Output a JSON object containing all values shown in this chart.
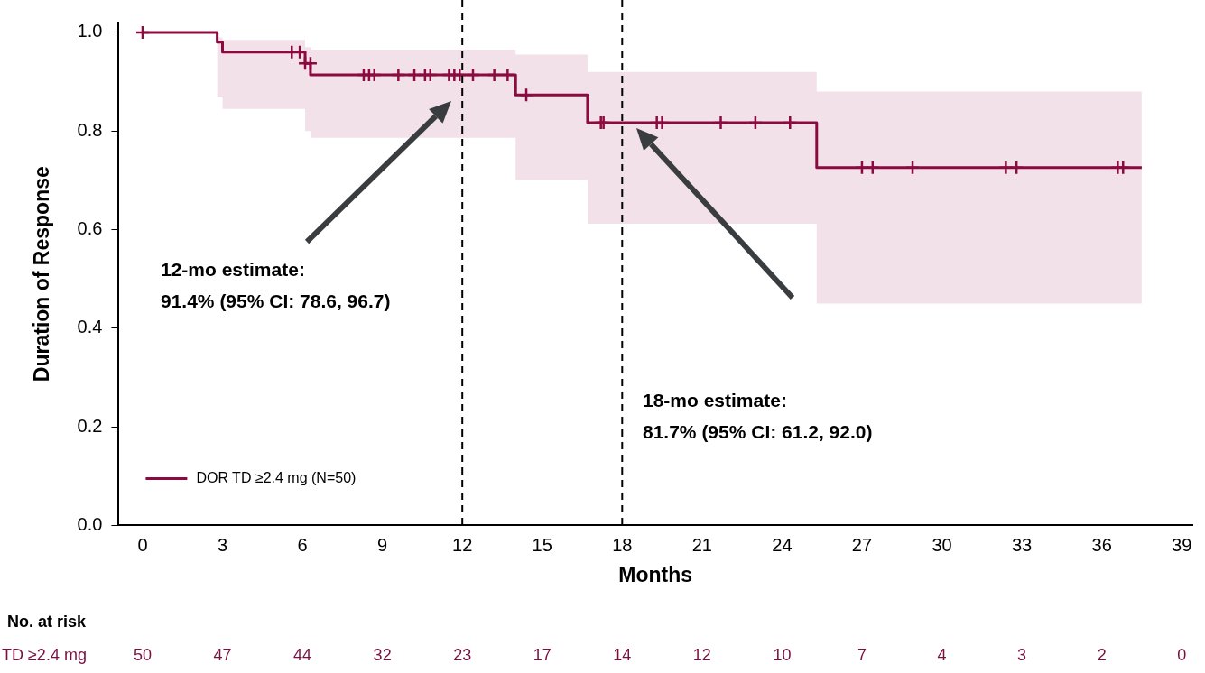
{
  "chart_data": {
    "type": "step",
    "ylabel": "Duration of Response",
    "xlabel": "Months",
    "xlim": [
      -0.9,
      39.4
    ],
    "xticks": [
      0,
      3,
      6,
      9,
      12,
      15,
      18,
      21,
      24,
      27,
      30,
      33,
      36,
      39
    ],
    "ylim": [
      0,
      1.02
    ],
    "yticks": [
      {
        "value": 0,
        "label": "0.0"
      },
      {
        "value": 0.2,
        "label": "0.2"
      },
      {
        "value": 0.4,
        "label": "0.4"
      },
      {
        "value": 0.6,
        "label": "0.6"
      },
      {
        "value": 0.8,
        "label": "0.8"
      },
      {
        "value": 1,
        "label": "1.0"
      }
    ],
    "grid": false,
    "legend": "bottom left",
    "line_style": "solid",
    "series": [
      {
        "name": "DOR TD ≥2.4 mg (N=50)",
        "color": "#8b0a3f",
        "marker": "none",
        "x": [
          0,
          2.8,
          3.0,
          6.1,
          6.3,
          14.0,
          16.7,
          25.3,
          37.5
        ],
        "values": [
          1.0,
          0.98,
          0.96,
          0.937,
          0.914,
          0.873,
          0.817,
          0.726,
          0.726
        ],
        "lower": [
          1.0,
          0.87,
          0.845,
          0.8,
          0.786,
          0.7,
          0.612,
          0.45,
          0.45
        ],
        "upper": [
          1.0,
          0.99,
          0.985,
          0.97,
          0.965,
          0.955,
          0.92,
          0.88,
          0.88
        ]
      },
      {
        "type": "scatter",
        "color": "#8b0a3f",
        "marker": "cross",
        "x": [
          0,
          5.6,
          5.9,
          6.1,
          6.3,
          8.3,
          8.5,
          8.7,
          9.6,
          10.2,
          10.6,
          10.8,
          11.5,
          11.7,
          11.9,
          12.4,
          13.2,
          13.7,
          14.4,
          17.2,
          17.3,
          19.3,
          19.5,
          21.7,
          23.0,
          24.3,
          27.0,
          27.4,
          28.9,
          32.4,
          32.8,
          36.6,
          36.8
        ],
        "values": [
          1.0,
          0.96,
          0.96,
          0.937,
          0.937,
          0.914,
          0.914,
          0.914,
          0.914,
          0.914,
          0.914,
          0.914,
          0.914,
          0.914,
          0.914,
          0.914,
          0.914,
          0.914,
          0.873,
          0.817,
          0.817,
          0.817,
          0.817,
          0.817,
          0.817,
          0.817,
          0.726,
          0.726,
          0.726,
          0.726,
          0.726,
          0.726,
          0.726
        ]
      }
    ],
    "ref_lines": [
      {
        "axis": "x",
        "value": 12,
        "color": "#000000",
        "line_style": "dashed"
      },
      {
        "axis": "x",
        "value": 18,
        "color": "#000000",
        "line_style": "dashed"
      }
    ],
    "annotations": [
      "12-mo estimate:\n91.4% (95% CI: 78.6, 96.7)",
      "18-mo estimate:\n81.7% (95% CI: 61.2, 92.0)",
      "No. at risk",
      "TD ≥2.4 mg",
      "50",
      "47",
      "44",
      "32",
      "23",
      "17",
      "14",
      "12",
      "10",
      "7",
      "4",
      "3",
      "2",
      "0"
    ]
  }
}
